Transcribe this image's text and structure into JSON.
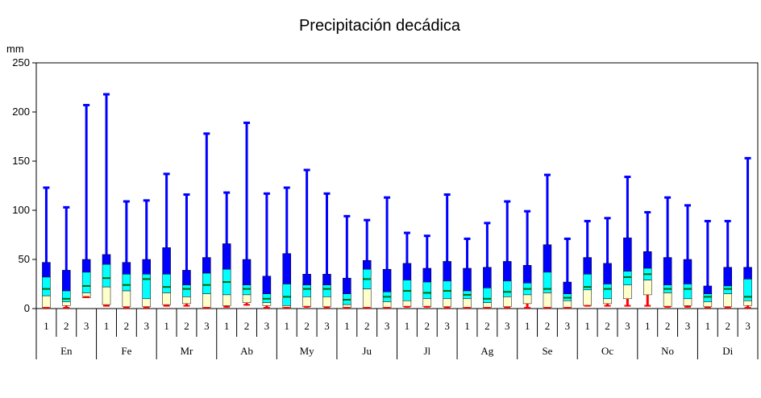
{
  "chart_data": {
    "type": "boxplot",
    "title": "Precipitación decádica",
    "ylabel": "mm",
    "ylim": [
      0,
      250
    ],
    "yticks": [
      0,
      50,
      100,
      150,
      200,
      250
    ],
    "grid": false,
    "decade_labels": [
      "1",
      "2",
      "3"
    ],
    "months": [
      "En",
      "Fe",
      "Mr",
      "Ab",
      "My",
      "Ju",
      "Jl",
      "Ag",
      "Se",
      "Oc",
      "No",
      "Di"
    ],
    "colors": {
      "whisker": "#0000ff",
      "outer_box": "#0000ff",
      "mid_box": "#00ffff",
      "inner_box": "#ffffcc",
      "median": "#006400",
      "min": "#ff0000"
    },
    "stats_order": [
      "min",
      "p10",
      "p25",
      "median",
      "p75",
      "p90",
      "max"
    ],
    "decades": [
      {
        "month": "En",
        "dec": "1",
        "min": 0,
        "p10": 1,
        "p25": 13,
        "median": 20,
        "p75": 32,
        "p90": 47,
        "max": 123
      },
      {
        "month": "En",
        "dec": "2",
        "min": 0,
        "p10": 3,
        "p25": 7,
        "median": 10,
        "p75": 18,
        "p90": 39,
        "max": 103
      },
      {
        "month": "En",
        "dec": "3",
        "min": 11,
        "p10": 11,
        "p25": 16,
        "median": 23,
        "p75": 37,
        "p90": 50,
        "max": 207
      },
      {
        "month": "Fe",
        "dec": "1",
        "min": 2,
        "p10": 4,
        "p25": 22,
        "median": 31,
        "p75": 45,
        "p90": 55,
        "max": 218
      },
      {
        "month": "Fe",
        "dec": "2",
        "min": 0,
        "p10": 2,
        "p25": 18,
        "median": 24,
        "p75": 35,
        "p90": 47,
        "max": 109
      },
      {
        "month": "Fe",
        "dec": "3",
        "min": 0,
        "p10": 2,
        "p25": 10,
        "median": 30,
        "p75": 35,
        "p90": 50,
        "max": 110
      },
      {
        "month": "Mr",
        "dec": "1",
        "min": 2,
        "p10": 4,
        "p25": 16,
        "median": 22,
        "p75": 35,
        "p90": 62,
        "max": 137
      },
      {
        "month": "Mr",
        "dec": "2",
        "min": 2,
        "p10": 5,
        "p25": 12,
        "median": 20,
        "p75": 24,
        "p90": 39,
        "max": 116
      },
      {
        "month": "Mr",
        "dec": "3",
        "min": 0,
        "p10": 1,
        "p25": 15,
        "median": 24,
        "p75": 36,
        "p90": 52,
        "max": 178
      },
      {
        "month": "Ab",
        "dec": "1",
        "min": 1,
        "p10": 3,
        "p25": 14,
        "median": 27,
        "p75": 40,
        "p90": 66,
        "max": 118
      },
      {
        "month": "Ab",
        "dec": "2",
        "min": 3,
        "p10": 6,
        "p25": 14,
        "median": 20,
        "p75": 24,
        "p90": 50,
        "max": 189
      },
      {
        "month": "Ab",
        "dec": "3",
        "min": 0,
        "p10": 3,
        "p25": 6,
        "median": 10,
        "p75": 15,
        "p90": 33,
        "max": 117
      },
      {
        "month": "My",
        "dec": "1",
        "min": 0,
        "p10": 1,
        "p25": 3,
        "median": 12,
        "p75": 25,
        "p90": 56,
        "max": 123
      },
      {
        "month": "My",
        "dec": "2",
        "min": 1,
        "p10": 2,
        "p25": 12,
        "median": 20,
        "p75": 24,
        "p90": 35,
        "max": 141
      },
      {
        "month": "My",
        "dec": "3",
        "min": 0,
        "p10": 2,
        "p25": 12,
        "median": 20,
        "p75": 24,
        "p90": 35,
        "max": 117
      },
      {
        "month": "Ju",
        "dec": "1",
        "min": 0,
        "p10": 1,
        "p25": 4,
        "median": 9,
        "p75": 15,
        "p90": 31,
        "max": 94
      },
      {
        "month": "Ju",
        "dec": "2",
        "min": 0,
        "p10": 1,
        "p25": 20,
        "median": 30,
        "p75": 40,
        "p90": 49,
        "max": 90
      },
      {
        "month": "Ju",
        "dec": "3",
        "min": 0,
        "p10": 1,
        "p25": 7,
        "median": 12,
        "p75": 17,
        "p90": 40,
        "max": 113
      },
      {
        "month": "Jl",
        "dec": "1",
        "min": 1,
        "p10": 2,
        "p25": 8,
        "median": 18,
        "p75": 29,
        "p90": 46,
        "max": 77
      },
      {
        "month": "Jl",
        "dec": "2",
        "min": 1,
        "p10": 2,
        "p25": 10,
        "median": 16,
        "p75": 27,
        "p90": 41,
        "max": 74
      },
      {
        "month": "Jl",
        "dec": "3",
        "min": 0,
        "p10": 2,
        "p25": 10,
        "median": 18,
        "p75": 28,
        "p90": 48,
        "max": 116
      },
      {
        "month": "Ag",
        "dec": "1",
        "min": 0,
        "p10": 1,
        "p25": 10,
        "median": 14,
        "p75": 18,
        "p90": 41,
        "max": 71
      },
      {
        "month": "Ag",
        "dec": "2",
        "min": 0,
        "p10": 1,
        "p25": 6,
        "median": 10,
        "p75": 21,
        "p90": 42,
        "max": 87
      },
      {
        "month": "Ag",
        "dec": "3",
        "min": 0,
        "p10": 2,
        "p25": 12,
        "median": 17,
        "p75": 28,
        "p90": 48,
        "max": 109
      },
      {
        "month": "Se",
        "dec": "1",
        "min": 0,
        "p10": 5,
        "p25": 14,
        "median": 20,
        "p75": 26,
        "p90": 44,
        "max": 99
      },
      {
        "month": "Se",
        "dec": "2",
        "min": 0,
        "p10": 1,
        "p25": 16,
        "median": 20,
        "p75": 37,
        "p90": 65,
        "max": 136
      },
      {
        "month": "Se",
        "dec": "3",
        "min": 0,
        "p10": 1,
        "p25": 8,
        "median": 11,
        "p75": 15,
        "p90": 27,
        "max": 71
      },
      {
        "month": "Oc",
        "dec": "1",
        "min": 2,
        "p10": 3,
        "p25": 19,
        "median": 22,
        "p75": 35,
        "p90": 52,
        "max": 89
      },
      {
        "month": "Oc",
        "dec": "2",
        "min": 2,
        "p10": 5,
        "p25": 10,
        "median": 20,
        "p75": 25,
        "p90": 46,
        "max": 92
      },
      {
        "month": "Oc",
        "dec": "3",
        "min": 2,
        "p10": 10,
        "p25": 24,
        "median": 32,
        "p75": 38,
        "p90": 72,
        "max": 134
      },
      {
        "month": "No",
        "dec": "1",
        "min": 2,
        "p10": 14,
        "p25": 29,
        "median": 35,
        "p75": 41,
        "p90": 58,
        "max": 98
      },
      {
        "month": "No",
        "dec": "2",
        "min": 1,
        "p10": 2,
        "p25": 16,
        "median": 20,
        "p75": 24,
        "p90": 52,
        "max": 113
      },
      {
        "month": "No",
        "dec": "3",
        "min": 1,
        "p10": 3,
        "p25": 10,
        "median": 20,
        "p75": 25,
        "p90": 50,
        "max": 105
      },
      {
        "month": "Di",
        "dec": "1",
        "min": 0,
        "p10": 2,
        "p25": 7,
        "median": 12,
        "p75": 15,
        "p90": 23,
        "max": 89
      },
      {
        "month": "Di",
        "dec": "2",
        "min": 0,
        "p10": 2,
        "p25": 15,
        "median": 20,
        "p75": 23,
        "p90": 42,
        "max": 89
      },
      {
        "month": "Di",
        "dec": "3",
        "min": 0,
        "p10": 3,
        "p25": 8,
        "median": 12,
        "p75": 30,
        "p90": 42,
        "max": 153
      }
    ]
  }
}
